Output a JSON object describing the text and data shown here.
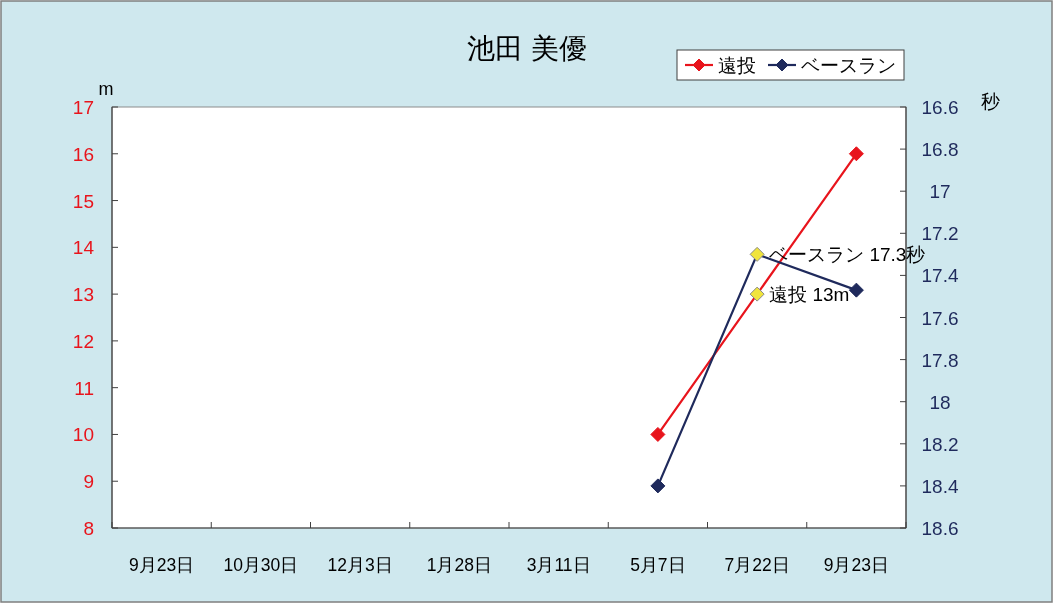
{
  "chart_data": {
    "type": "line",
    "title": "池田 美優",
    "ylabel": "m",
    "y2label": "秒",
    "categories": [
      "9月23日",
      "10月30日",
      "12月3日",
      "1月28日",
      "3月11日",
      "5月7日",
      "7月22日",
      "9月23日"
    ],
    "series": [
      {
        "name": "遠投",
        "color": "#e8141c",
        "colors": [
          null,
          null,
          null,
          null,
          null,
          "#e8141c",
          "#f0e43c",
          "#e8141c"
        ],
        "values": [
          null,
          null,
          null,
          null,
          null,
          10,
          13,
          16
        ]
      },
      {
        "name": "ベースラン",
        "color": "#1f2a5c",
        "axis": "y2",
        "colors": [
          null,
          null,
          null,
          null,
          null,
          "#1f2a5c",
          "#f0e43c",
          "#1f2a5c"
        ],
        "values": [
          null,
          null,
          null,
          null,
          null,
          18.4,
          17.3,
          17.47
        ]
      }
    ],
    "ylim": [
      8,
      17
    ],
    "yticks": [
      8,
      9,
      10,
      11,
      12,
      13,
      14,
      15,
      16,
      17
    ],
    "y2lim": [
      18.6,
      16.6
    ],
    "y2ticks": [
      16.6,
      16.8,
      17,
      17.2,
      17.4,
      17.6,
      17.8,
      18,
      18.2,
      18.4,
      18.6
    ],
    "legend": "top right",
    "marker": "diamond",
    "annotations": [
      "ベースラン 17.3秒",
      {
        "text": "遠投 13m",
        "x": "7月22日",
        "y": 13
      }
    ]
  }
}
